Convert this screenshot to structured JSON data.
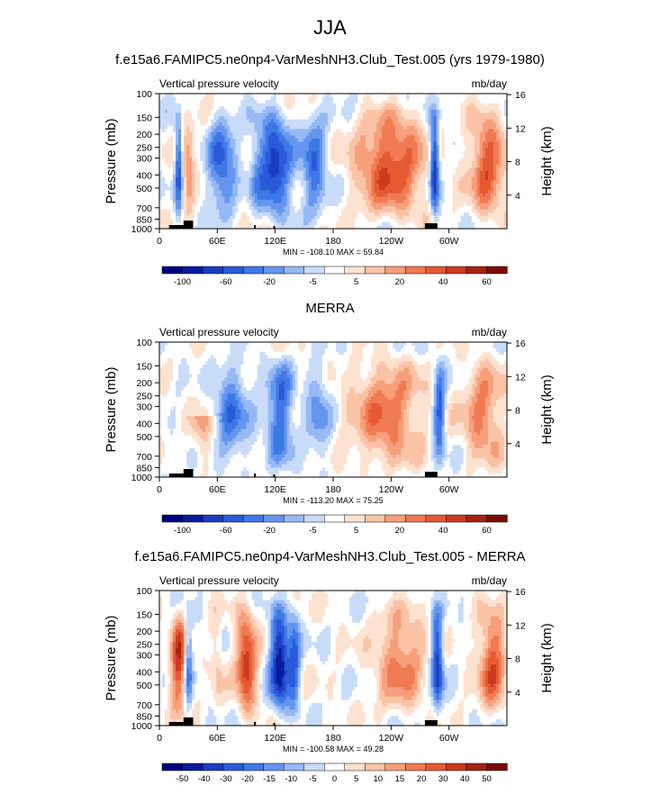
{
  "page": {
    "main_title": "JJA"
  },
  "colors": {
    "levels_palette": [
      "#00007f",
      "#0a1a9e",
      "#1a3dc2",
      "#2a5ad8",
      "#3f78e6",
      "#6496f0",
      "#96b9f5",
      "#c8dcfa",
      "#ffffff",
      "#fde2d0",
      "#fbc3a6",
      "#f79f7a",
      "#f07a52",
      "#e55a33",
      "#cc3a1f",
      "#a52312",
      "#7a0d07"
    ],
    "map_border": "#000000"
  },
  "chart_data": [
    {
      "type": "heatmap",
      "id": "model",
      "panel_title": "f.e15a6.FAMIPC5.ne0np4-VarMeshNH3.Club_Test.005 (yrs 1979-1980)",
      "left_string": "Vertical pressure velocity",
      "right_string": "mb/day",
      "ylabel": "Pressure (mb)",
      "ylabel_right": "Height (km)",
      "x_ticks": [
        "0",
        "60E",
        "120E",
        "180",
        "120W",
        "60W"
      ],
      "x_tick_lon": [
        0,
        60,
        120,
        180,
        240,
        300
      ],
      "xlim": [
        0,
        360
      ],
      "y_ticks": [
        "100",
        "150",
        "200",
        "250",
        "300",
        "400",
        "500",
        "700",
        "850",
        "1000"
      ],
      "y_tick_p": [
        100,
        150,
        200,
        250,
        300,
        400,
        500,
        700,
        850,
        1000
      ],
      "ylim": [
        1000,
        100
      ],
      "height_ticks": [
        "16",
        "12",
        "8",
        "4"
      ],
      "height_km": [
        16,
        12,
        8,
        4
      ],
      "minmax": "MIN = -108.10  MAX =  59.84",
      "colorbar_labels": [
        "-100",
        "-60",
        "-20",
        "-5",
        "5",
        "20",
        "40",
        "60"
      ],
      "colorbar_levels": [
        -100,
        -80,
        -60,
        -40,
        -30,
        -20,
        -10,
        -5,
        5,
        10,
        20,
        30,
        40,
        50,
        60
      ]
    },
    {
      "type": "heatmap",
      "id": "merra",
      "panel_title": "MERRA",
      "left_string": "Vertical pressure velocity",
      "right_string": "mb/day",
      "ylabel": "Pressure (mb)",
      "ylabel_right": "Height (km)",
      "x_ticks": [
        "0",
        "60E",
        "120E",
        "180",
        "120W",
        "60W"
      ],
      "x_tick_lon": [
        0,
        60,
        120,
        180,
        240,
        300
      ],
      "xlim": [
        0,
        360
      ],
      "y_ticks": [
        "100",
        "150",
        "200",
        "250",
        "300",
        "400",
        "500",
        "700",
        "850",
        "1000"
      ],
      "y_tick_p": [
        100,
        150,
        200,
        250,
        300,
        400,
        500,
        700,
        850,
        1000
      ],
      "ylim": [
        1000,
        100
      ],
      "height_ticks": [
        "16",
        "12",
        "8",
        "4"
      ],
      "height_km": [
        16,
        12,
        8,
        4
      ],
      "minmax": "MIN = -113.20  MAX =  75.25",
      "colorbar_labels": [
        "-100",
        "-60",
        "-20",
        "-5",
        "5",
        "20",
        "40",
        "60"
      ],
      "colorbar_levels": [
        -100,
        -80,
        -60,
        -40,
        -30,
        -20,
        -10,
        -5,
        5,
        10,
        20,
        30,
        40,
        50,
        60
      ]
    },
    {
      "type": "heatmap",
      "id": "diff",
      "panel_title": "f.e15a6.FAMIPC5.ne0np4-VarMeshNH3.Club_Test.005 - MERRA",
      "left_string": "Vertical pressure velocity",
      "right_string": "mb/day",
      "ylabel": "Pressure (mb)",
      "ylabel_right": "Height (km)",
      "x_ticks": [
        "0",
        "60E",
        "120E",
        "180",
        "120W",
        "60W"
      ],
      "x_tick_lon": [
        0,
        60,
        120,
        180,
        240,
        300
      ],
      "xlim": [
        0,
        360
      ],
      "y_ticks": [
        "100",
        "150",
        "200",
        "250",
        "300",
        "400",
        "500",
        "700",
        "850",
        "1000"
      ],
      "y_tick_p": [
        100,
        150,
        200,
        250,
        300,
        400,
        500,
        700,
        850,
        1000
      ],
      "ylim": [
        1000,
        100
      ],
      "height_ticks": [
        "16",
        "12",
        "8",
        "4"
      ],
      "height_km": [
        16,
        12,
        8,
        4
      ],
      "minmax": "MIN = -100.58  MAX =  49.28",
      "colorbar_labels": [
        "-50",
        "-40",
        "-30",
        "-20",
        "-15",
        "-10",
        "-5",
        "0",
        "5",
        "10",
        "15",
        "20",
        "30",
        "40",
        "50"
      ],
      "colorbar_levels": [
        -50,
        -40,
        -30,
        -20,
        -15,
        -10,
        -5,
        0,
        5,
        10,
        15,
        20,
        30,
        40,
        50
      ]
    }
  ]
}
